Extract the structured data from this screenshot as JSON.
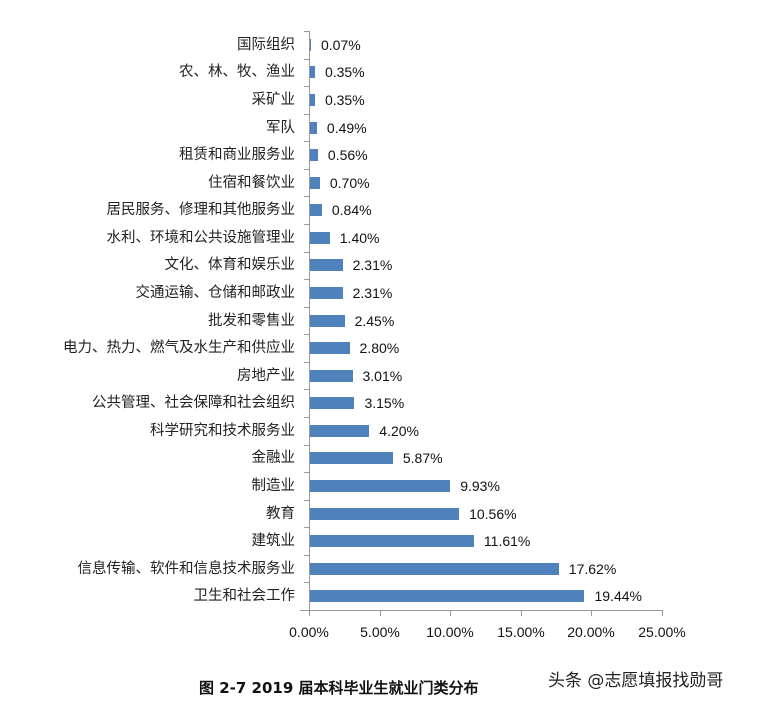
{
  "chart_data": {
    "type": "bar",
    "orientation": "horizontal",
    "title": "",
    "caption": "图 2-7 2019 届本科毕业生就业门类分布",
    "xlabel": "",
    "ylabel": "",
    "xlim": [
      0,
      25
    ],
    "x_ticks": [
      "0.00%",
      "5.00%",
      "10.00%",
      "15.00%",
      "20.00%",
      "25.00%"
    ],
    "grid": false,
    "legend": null,
    "bar_color": "#4f81bd",
    "categories": [
      "国际组织",
      "农、林、牧、渔业",
      "采矿业",
      "军队",
      "租赁和商业服务业",
      "住宿和餐饮业",
      "居民服务、修理和其他服务业",
      "水利、环境和公共设施管理业",
      "文化、体育和娱乐业",
      "交通运输、仓储和邮政业",
      "批发和零售业",
      "电力、热力、燃气及水生产和供应业",
      "房地产业",
      "公共管理、社会保障和社会组织",
      "科学研究和技术服务业",
      "金融业",
      "制造业",
      "教育",
      "建筑业",
      "信息传输、软件和信息技术服务业",
      "卫生和社会工作"
    ],
    "values": [
      0.07,
      0.35,
      0.35,
      0.49,
      0.56,
      0.7,
      0.84,
      1.4,
      2.31,
      2.31,
      2.45,
      2.8,
      3.01,
      3.15,
      4.2,
      5.87,
      9.93,
      10.56,
      11.61,
      17.62,
      19.44
    ],
    "value_labels": [
      "0.07%",
      "0.35%",
      "0.35%",
      "0.49%",
      "0.56%",
      "0.70%",
      "0.84%",
      "1.40%",
      "2.31%",
      "2.31%",
      "2.45%",
      "2.80%",
      "3.01%",
      "3.15%",
      "4.20%",
      "5.87%",
      "9.93%",
      "10.56%",
      "11.61%",
      "17.62%",
      "19.44%"
    ],
    "unit": "%"
  },
  "caption": "图 2-7 2019 届本科毕业生就业门类分布",
  "watermark": "头条 @志愿填报找勋哥"
}
